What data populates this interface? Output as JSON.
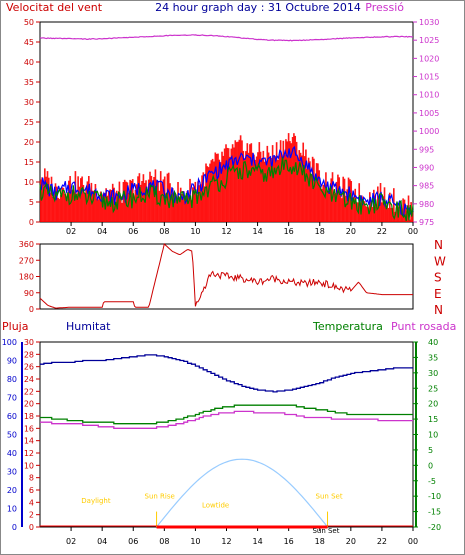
{
  "header": {
    "left_title": "Velocitat del vent",
    "center_title": "24 hour graph day : 31 Octubre 2014",
    "right_title": "Pressió"
  },
  "colors": {
    "wind_gust": "#ff0000",
    "wind_avg": "#008000",
    "wind_10min": "#0000ff",
    "pressure": "#cc33cc",
    "direction": "#cc0000",
    "humidity": "#000099",
    "temperature": "#008000",
    "dewpoint": "#cc33cc",
    "rain": "#ff0000",
    "solar": "#99ccff",
    "sun_label": "#ffcc00",
    "axis_left": "#cc0000",
    "axis_right": "#cc33cc",
    "axis_humidity": "#0000cc"
  },
  "chart_data": [
    {
      "type": "line",
      "title": "24 hour graph day : 31 Octubre 2014",
      "xlabel": "",
      "ylabel": "Velocitat del vent",
      "y2label": "Pressió",
      "x_ticks": [
        "02",
        "04",
        "06",
        "08",
        "10",
        "12",
        "14",
        "16",
        "18",
        "20",
        "22",
        "00"
      ],
      "ylim": [
        0,
        50
      ],
      "y_ticks": [
        0,
        5,
        10,
        15,
        20,
        25,
        30,
        35,
        40,
        45,
        50
      ],
      "y2lim": [
        975,
        1030
      ],
      "y2_ticks": [
        975,
        980,
        985,
        990,
        995,
        1000,
        1005,
        1010,
        1015,
        1020,
        1025,
        1030
      ],
      "x_hours": [
        0,
        1,
        2,
        3,
        4,
        5,
        6,
        7,
        8,
        9,
        10,
        11,
        12,
        13,
        14,
        15,
        16,
        17,
        18,
        19,
        20,
        21,
        22,
        23,
        24
      ],
      "series": [
        {
          "name": "gust",
          "values": [
            12,
            8,
            10,
            9,
            8,
            7,
            9,
            11,
            10,
            7,
            9,
            14,
            17,
            19,
            17,
            17,
            21,
            17,
            11,
            9,
            8,
            6,
            7,
            5,
            3
          ]
        },
        {
          "name": "average",
          "values": [
            8,
            6,
            7,
            6,
            5,
            5,
            6,
            7,
            6,
            5,
            6,
            9,
            11,
            13,
            12,
            12,
            15,
            12,
            8,
            6,
            5,
            4,
            5,
            3,
            2
          ]
        },
        {
          "name": "10min",
          "values": [
            10,
            7,
            9,
            8,
            7,
            6,
            8,
            9,
            8,
            6,
            8,
            12,
            14,
            16,
            15,
            15,
            18,
            15,
            10,
            8,
            7,
            5,
            6,
            4,
            2
          ]
        },
        {
          "name": "pressure",
          "values": [
            1025.6,
            1025.5,
            1025.4,
            1025.3,
            1025.4,
            1025.6,
            1025.8,
            1026.0,
            1026.2,
            1026.4,
            1026.4,
            1026.3,
            1026.0,
            1025.6,
            1025.2,
            1025.0,
            1024.9,
            1025.0,
            1025.2,
            1025.4,
            1025.6,
            1025.8,
            1025.9,
            1026.0,
            1025.9
          ]
        }
      ]
    },
    {
      "type": "line",
      "title": "",
      "ylim": [
        0,
        360
      ],
      "y_ticks": [
        0,
        90,
        180,
        270,
        360
      ],
      "right_labels": [
        "N",
        "W",
        "S",
        "E",
        "N"
      ],
      "x_hours": [
        0,
        0.5,
        1,
        2,
        3,
        4,
        4.1,
        5,
        6,
        6.1,
        6.5,
        7,
        8,
        8.5,
        9,
        9.5,
        9.8,
        10,
        11,
        12,
        13,
        14,
        15,
        16,
        17,
        18,
        19,
        20,
        20.5,
        21,
        22,
        23,
        24
      ],
      "series": [
        {
          "name": "direction",
          "values": [
            60,
            20,
            5,
            10,
            10,
            10,
            40,
            40,
            40,
            10,
            10,
            10,
            360,
            320,
            300,
            330,
            320,
            15,
            200,
            180,
            170,
            150,
            170,
            150,
            140,
            150,
            120,
            100,
            150,
            90,
            80,
            80,
            80
          ]
        }
      ]
    },
    {
      "type": "line",
      "title": "",
      "legend": [
        "Pluja",
        "Humitat",
        "Temperatura",
        "Punt rosada"
      ],
      "rain_ylim": [
        0,
        30
      ],
      "rain_ticks": [
        0,
        2,
        4,
        6,
        8,
        10,
        12,
        14,
        16,
        18,
        20,
        22,
        24,
        26,
        28,
        30
      ],
      "humidity_ylim": [
        0,
        100
      ],
      "humidity_ticks": [
        0,
        10,
        20,
        30,
        40,
        50,
        60,
        70,
        80,
        90,
        100
      ],
      "temp_ylim": [
        -20,
        40
      ],
      "temp_ticks": [
        -20,
        -15,
        -10,
        -5,
        0,
        5,
        10,
        15,
        20,
        25,
        30,
        35,
        40
      ],
      "sun_labels": {
        "daylight": "Daylight",
        "sunrise": "Sun Rise",
        "lowtide": "Lowtide",
        "sunset": "Sun Set",
        "sunset2": "Sun Set"
      },
      "x_hours": [
        0,
        1,
        2,
        3,
        4,
        5,
        6,
        7,
        8,
        9,
        10,
        11,
        12,
        13,
        14,
        15,
        16,
        17,
        18,
        19,
        20,
        21,
        22,
        23,
        24
      ],
      "series": [
        {
          "name": "Humitat",
          "values": [
            88,
            89,
            89,
            90,
            90,
            91,
            92,
            93,
            92,
            90,
            87,
            83,
            79,
            76,
            74,
            73,
            74,
            76,
            78,
            81,
            83,
            84,
            85,
            86,
            86
          ]
        },
        {
          "name": "Temperatura",
          "values": [
            15.5,
            15,
            14.5,
            14,
            14,
            13.5,
            13.5,
            13.5,
            14,
            15,
            16.5,
            18,
            19,
            19.5,
            19.5,
            19.5,
            19.5,
            18.5,
            18,
            17,
            16.5,
            16.5,
            16.5,
            16.5,
            16.5
          ]
        },
        {
          "name": "Punt rosada",
          "values": [
            14,
            13.5,
            13.5,
            13,
            12.5,
            12,
            12,
            12,
            12.5,
            13.5,
            15,
            16.5,
            17,
            17.5,
            17,
            17,
            16.5,
            15.5,
            15.5,
            15,
            15,
            15,
            14.5,
            14.5,
            14.5
          ]
        },
        {
          "name": "Pluja",
          "values": [
            0,
            0,
            0,
            0,
            0,
            0,
            0,
            0,
            0,
            0,
            0,
            0,
            0,
            0,
            0,
            0,
            0,
            0,
            0,
            0,
            0,
            0,
            0,
            0,
            0
          ]
        }
      ],
      "solar": {
        "rise_hour": 7.5,
        "set_hour": 18.5,
        "peak_hour": 13,
        "peak_rain_units": 11
      }
    }
  ]
}
